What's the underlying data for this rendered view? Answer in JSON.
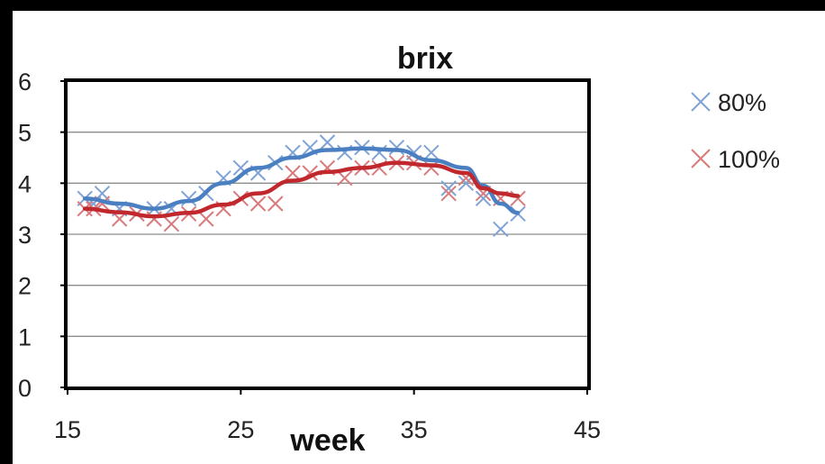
{
  "chart_data": {
    "type": "scatter",
    "title": "brix",
    "xlabel": "week",
    "ylabel": "",
    "xlim": [
      15,
      45
    ],
    "ylim": [
      0,
      6
    ],
    "xticks": [
      15,
      25,
      35,
      45
    ],
    "yticks": [
      0,
      1,
      2,
      3,
      4,
      5,
      6
    ],
    "grid": true,
    "legend_position": "right",
    "series": [
      {
        "name": "80%",
        "color": "#4a7fc1",
        "marker_color": "#7fa3d6",
        "points": [
          [
            16,
            3.7
          ],
          [
            16.5,
            3.6
          ],
          [
            17,
            3.8
          ],
          [
            18,
            3.5
          ],
          [
            19,
            3.4
          ],
          [
            20,
            3.5
          ],
          [
            21,
            3.5
          ],
          [
            22,
            3.7
          ],
          [
            23,
            3.8
          ],
          [
            24,
            4.1
          ],
          [
            25,
            4.3
          ],
          [
            26,
            4.2
          ],
          [
            27,
            4.4
          ],
          [
            28,
            4.6
          ],
          [
            29,
            4.7
          ],
          [
            30,
            4.8
          ],
          [
            31,
            4.6
          ],
          [
            32,
            4.7
          ],
          [
            33,
            4.6
          ],
          [
            34,
            4.7
          ],
          [
            35,
            4.6
          ],
          [
            36,
            4.6
          ],
          [
            37,
            3.9
          ],
          [
            38,
            4.0
          ],
          [
            39,
            3.7
          ],
          [
            40,
            3.1
          ],
          [
            41,
            3.4
          ]
        ],
        "trend": [
          [
            16,
            3.7
          ],
          [
            18,
            3.6
          ],
          [
            20,
            3.5
          ],
          [
            22,
            3.65
          ],
          [
            24,
            4.0
          ],
          [
            26,
            4.3
          ],
          [
            28,
            4.5
          ],
          [
            30,
            4.65
          ],
          [
            32,
            4.68
          ],
          [
            34,
            4.65
          ],
          [
            36,
            4.45
          ],
          [
            38,
            4.3
          ],
          [
            39,
            3.95
          ],
          [
            40,
            3.6
          ],
          [
            41,
            3.42
          ]
        ]
      },
      {
        "name": "100%",
        "color": "#c0282d",
        "marker_color": "#d97a7c",
        "points": [
          [
            16,
            3.5
          ],
          [
            16.5,
            3.5
          ],
          [
            17,
            3.6
          ],
          [
            18,
            3.3
          ],
          [
            19,
            3.4
          ],
          [
            20,
            3.3
          ],
          [
            21,
            3.2
          ],
          [
            22,
            3.4
          ],
          [
            23,
            3.3
          ],
          [
            24,
            3.5
          ],
          [
            25,
            3.7
          ],
          [
            26,
            3.6
          ],
          [
            27,
            3.6
          ],
          [
            28,
            4.2
          ],
          [
            29,
            4.2
          ],
          [
            30,
            4.3
          ],
          [
            31,
            4.1
          ],
          [
            32,
            4.3
          ],
          [
            33,
            4.3
          ],
          [
            34,
            4.4
          ],
          [
            35,
            4.4
          ],
          [
            36,
            4.3
          ],
          [
            37,
            3.8
          ],
          [
            38,
            4.1
          ],
          [
            39,
            3.8
          ],
          [
            40,
            3.7
          ],
          [
            41,
            3.7
          ]
        ],
        "trend": [
          [
            16,
            3.5
          ],
          [
            18,
            3.43
          ],
          [
            20,
            3.35
          ],
          [
            22,
            3.42
          ],
          [
            24,
            3.58
          ],
          [
            26,
            3.8
          ],
          [
            28,
            4.05
          ],
          [
            30,
            4.22
          ],
          [
            32,
            4.3
          ],
          [
            34,
            4.4
          ],
          [
            36,
            4.35
          ],
          [
            38,
            4.2
          ],
          [
            39,
            3.9
          ],
          [
            40,
            3.8
          ],
          [
            41,
            3.75
          ]
        ]
      }
    ]
  }
}
